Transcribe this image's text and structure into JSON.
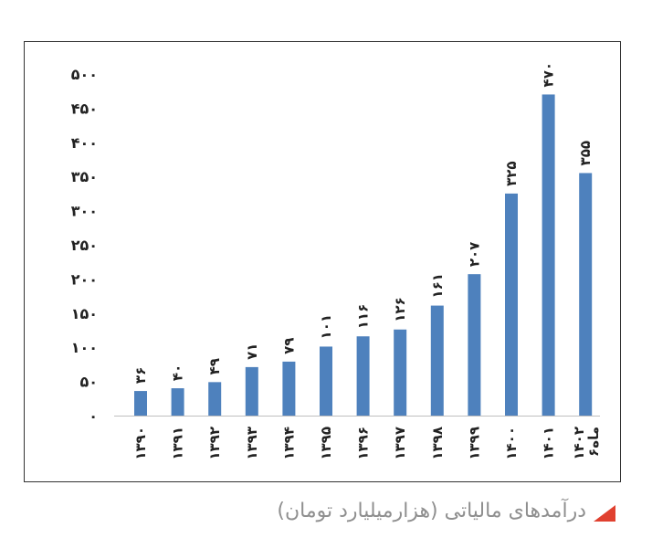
{
  "caption": {
    "text": "درآمدهای مالیاتی (هزارمیلیارد تومان)",
    "marker_color": "#e0402f"
  },
  "chart_data": {
    "type": "bar",
    "title": "",
    "xlabel": "",
    "ylabel": "",
    "ylim": [
      0,
      500
    ],
    "yticks": [
      "۰",
      "۵۰",
      "۱۰۰",
      "۱۵۰",
      "۲۰۰",
      "۲۵۰",
      "۳۰۰",
      "۳۵۰",
      "۴۰۰",
      "۴۵۰",
      "۵۰۰"
    ],
    "ytick_values": [
      0,
      50,
      100,
      150,
      200,
      250,
      300,
      350,
      400,
      450,
      500
    ],
    "categories": [
      "۱۳۹۰",
      "۱۳۹۱",
      "۱۳۹۲",
      "۱۳۹۳",
      "۱۳۹۴",
      "۱۳۹۵",
      "۱۳۹۶",
      "۱۳۹۷",
      "۱۳۹۸",
      "۱۳۹۹",
      "۱۴۰۰",
      "۱۴۰۱",
      [
        "۱۴۰۲",
        "۶ماه"
      ]
    ],
    "values": [
      36,
      40,
      49,
      71,
      79,
      101,
      116,
      126,
      161,
      207,
      325,
      470,
      355
    ],
    "value_labels": [
      "۳۶",
      "۴۰",
      "۴۹",
      "۷۱",
      "۷۹",
      "۱۰۱",
      "۱۱۶",
      "۱۲۶",
      "۱۶۱",
      "۲۰۷",
      "۳۲۵",
      "۴۷۰",
      "۳۵۵"
    ],
    "bar_color": "#4e81bd",
    "grid": false,
    "legend": "none"
  }
}
